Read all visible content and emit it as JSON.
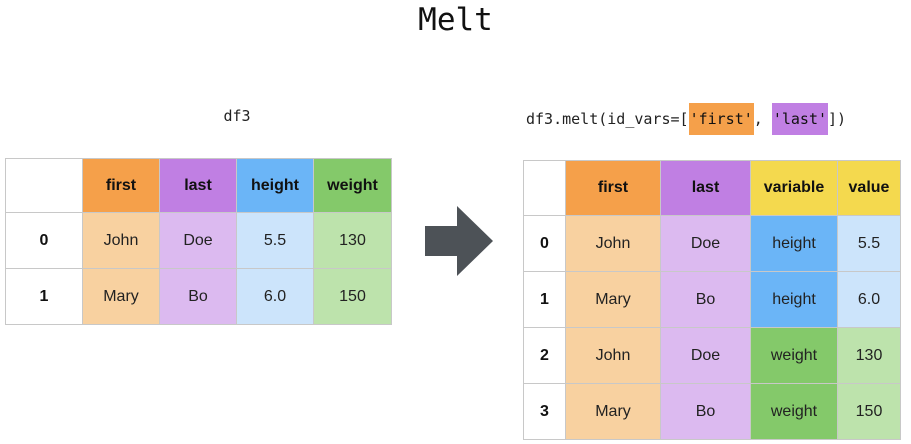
{
  "title": "Melt",
  "left": {
    "label": "df3",
    "columns": [
      "first",
      "last",
      "height",
      "weight"
    ],
    "rows": [
      {
        "index": "0",
        "first": "John",
        "last": "Doe",
        "height": "5.5",
        "weight": "130"
      },
      {
        "index": "1",
        "first": "Mary",
        "last": "Bo",
        "height": "6.0",
        "weight": "150"
      }
    ]
  },
  "right": {
    "label_prefix": "df3.melt(id_vars=[",
    "label_id1": "'first'",
    "label_sep": ", ",
    "label_id2": "'last'",
    "label_suffix": "])",
    "columns": [
      "first",
      "last",
      "variable",
      "value"
    ],
    "rows": [
      {
        "index": "0",
        "first": "John",
        "last": "Doe",
        "variable": "height",
        "value": "5.5"
      },
      {
        "index": "1",
        "first": "Mary",
        "last": "Bo",
        "variable": "height",
        "value": "6.0"
      },
      {
        "index": "2",
        "first": "John",
        "last": "Doe",
        "variable": "weight",
        "value": "130"
      },
      {
        "index": "3",
        "first": "Mary",
        "last": "Bo",
        "variable": "weight",
        "value": "150"
      }
    ]
  },
  "colors": {
    "first_header": "#f5a04a",
    "first_cell": "#f8d1a0",
    "last_header": "#c07fe3",
    "last_cell": "#dcbaf0",
    "height_header": "#6bb5f7",
    "height_cell": "#cce4fb",
    "weight_header": "#84c96a",
    "weight_cell": "#bde3ac",
    "variable_header": "#f4d94e",
    "value_cell_height": "#cce4fb",
    "value_cell_weight": "#bde3ac",
    "arrow": "#4d5257"
  }
}
